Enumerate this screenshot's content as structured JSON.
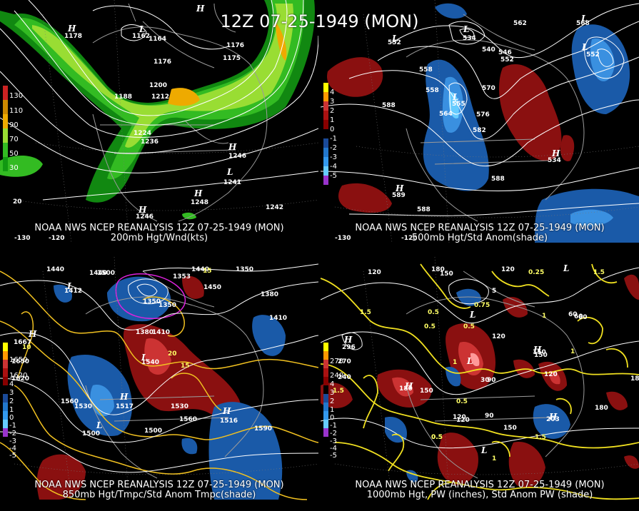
{
  "title": "12Z 07-25-1949 (MON)",
  "panels": [
    {
      "id": "p1",
      "caption_line1": "NOAA NWS NCEP REANALYSIS 12Z 07-25-1949 (MON)",
      "caption_line2": "200mb Hgt/Wnd(kts)",
      "legend": [
        "130",
        "110",
        "90",
        "70",
        "50",
        "30"
      ],
      "legend_colors": [
        "#cc2222",
        "#cc8800",
        "#eeaa00",
        "#99dd33",
        "#33bb22",
        "#119911"
      ],
      "contour_labels": [
        "1164",
        "1176",
        "1176",
        "1188",
        "1200",
        "1212",
        "1224",
        "1236",
        "1246",
        "1248",
        "1246",
        "1242",
        "1241",
        "1162",
        "1178",
        "1175"
      ],
      "axis_labels": [
        "-120",
        "-130",
        "20"
      ],
      "centers": [
        "H",
        "L",
        "H",
        "L",
        "H",
        "H",
        "H"
      ]
    },
    {
      "id": "p2",
      "caption_line1": "NOAA NWS NCEP REANALYSIS 12Z 07-25-1949 (MON)",
      "caption_line2": "500mb Hgt/Std Anom(shade)",
      "legend": [
        "4",
        "3",
        "2",
        "1",
        "0",
        "-1",
        "-2",
        "-3",
        "-4",
        "-5"
      ],
      "legend_colors": [
        "#ffff00",
        "#ff9900",
        "#cc3333",
        "#aa1111",
        "#880000",
        "#000000",
        "#1a4a99",
        "#2277cc",
        "#3399ee",
        "#66ccff",
        "#9933cc"
      ],
      "contour_labels": [
        "552",
        "534",
        "540",
        "546",
        "552",
        "558",
        "558",
        "564",
        "570",
        "576",
        "582",
        "588",
        "588",
        "588",
        "589",
        "534",
        "552",
        "555",
        "562",
        "568"
      ],
      "axis_labels": [
        "-130",
        "-120"
      ],
      "centers": [
        "L",
        "L",
        "L",
        "L",
        "H",
        "H",
        "L"
      ]
    },
    {
      "id": "p3",
      "caption_line1": "NOAA NWS NCEP REANALYSIS 12Z 07-25-1949 (MON)",
      "caption_line2": "850mb Hgt/Tmpc/Std Anom Tmpc(shade)",
      "legend": [
        "1650",
        "1620",
        "4",
        "3",
        "2",
        "1",
        "0",
        "-1",
        "-2",
        "-3",
        "-4",
        "-5"
      ],
      "contour_labels": [
        "1440",
        "1500",
        "1380",
        "1410",
        "1350",
        "1560",
        "1530",
        "1500",
        "1590",
        "1530",
        "1560",
        "1500",
        "1620",
        "1650",
        "1410",
        "1440",
        "1380",
        "1440",
        "1350",
        "1540",
        "1517",
        "1516",
        "1350",
        "1353",
        "1667",
        "1412",
        "1450"
      ],
      "yellow_labels": [
        "10",
        "15",
        "20",
        "15"
      ],
      "centers": [
        "H",
        "L",
        "H",
        "L",
        "L",
        "H"
      ]
    },
    {
      "id": "p4",
      "caption_line1": "NOAA NWS NCEP REANALYSIS 12Z 07-25-1949 (MON)",
      "caption_line2": "1000mb Hgt, PW (inches), Std Anom PW (shade)",
      "legend": [
        "270",
        "240",
        "4",
        "3",
        "2",
        "1",
        "0",
        "-1",
        "-2",
        "-3",
        "-4",
        "-5"
      ],
      "contour_labels": [
        "120",
        "180",
        "150",
        "120",
        "150",
        "60",
        "150",
        "90",
        "180",
        "150",
        "120",
        "120",
        "60",
        "30",
        "180",
        "90",
        "120",
        "150",
        "180",
        "203",
        "296",
        "5",
        "60",
        "120",
        "270",
        "240"
      ],
      "yellow_labels": [
        "0.25",
        "0.5",
        "0.5",
        "0.75",
        "1",
        "1.5",
        "0.5",
        "0.5",
        "1",
        "1.5",
        "1",
        "0.5",
        "1.5",
        "1",
        "0.5",
        "1.5"
      ],
      "centers": [
        "H",
        "L",
        "L",
        "H",
        "H",
        "L",
        "L",
        "H"
      ]
    }
  ]
}
